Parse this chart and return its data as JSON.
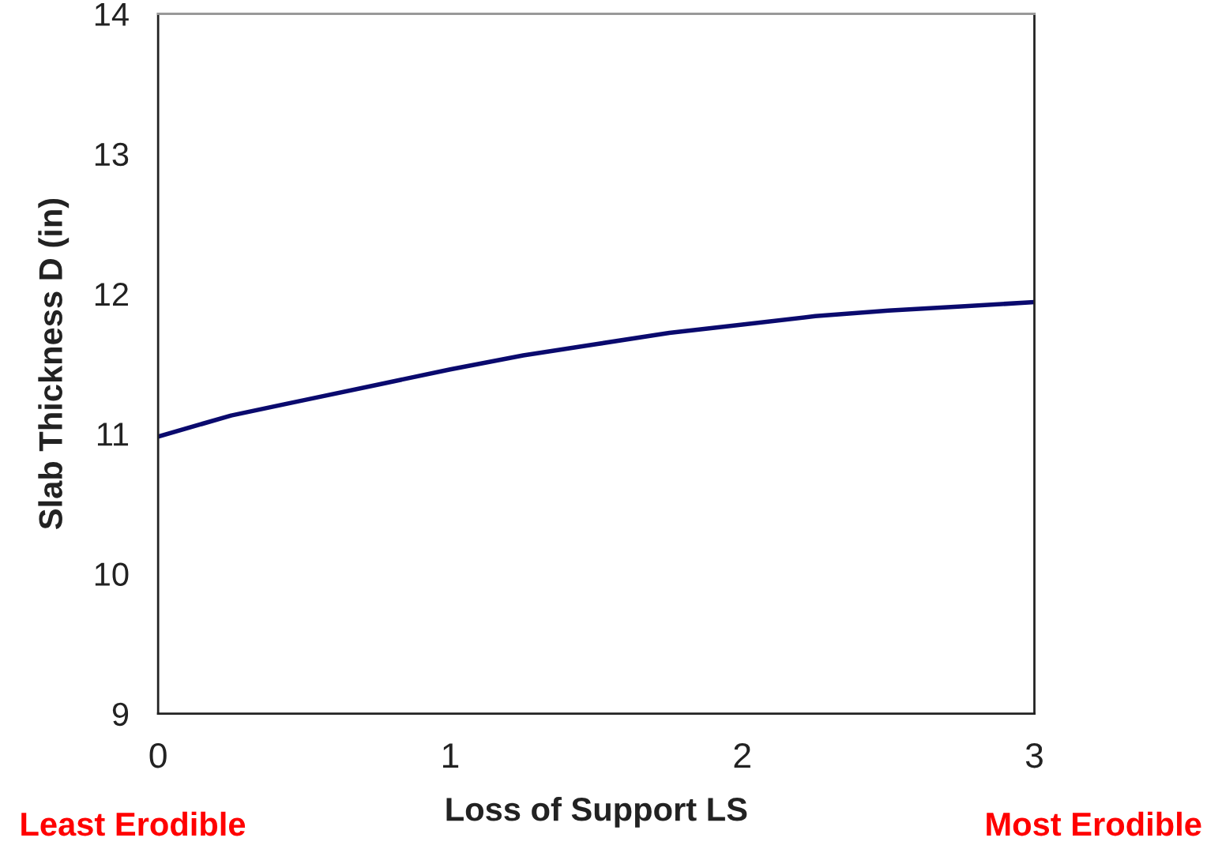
{
  "chart_data": {
    "type": "line",
    "xlabel": "Loss of Support LS",
    "ylabel": "Slab Thickness D (in)",
    "x": [
      0,
      0.25,
      0.5,
      0.75,
      1,
      1.25,
      1.5,
      1.75,
      2,
      2.25,
      2.5,
      2.75,
      3
    ],
    "series": [
      {
        "color": "#0a0a6e",
        "values": [
          10.98,
          11.13,
          11.24,
          11.35,
          11.46,
          11.56,
          11.64,
          11.72,
          11.78,
          11.84,
          11.88,
          11.91,
          11.94
        ]
      }
    ],
    "xlim": [
      0,
      3
    ],
    "xticks": [
      0,
      1,
      2,
      3
    ],
    "ylim": [
      9,
      14
    ],
    "yticks": [
      9,
      10,
      11,
      12,
      13,
      14
    ],
    "grid": false,
    "legend": false,
    "marker": "none",
    "line_style": "solid",
    "annotations": [
      "Least Erodible",
      "Most Erodible"
    ]
  }
}
